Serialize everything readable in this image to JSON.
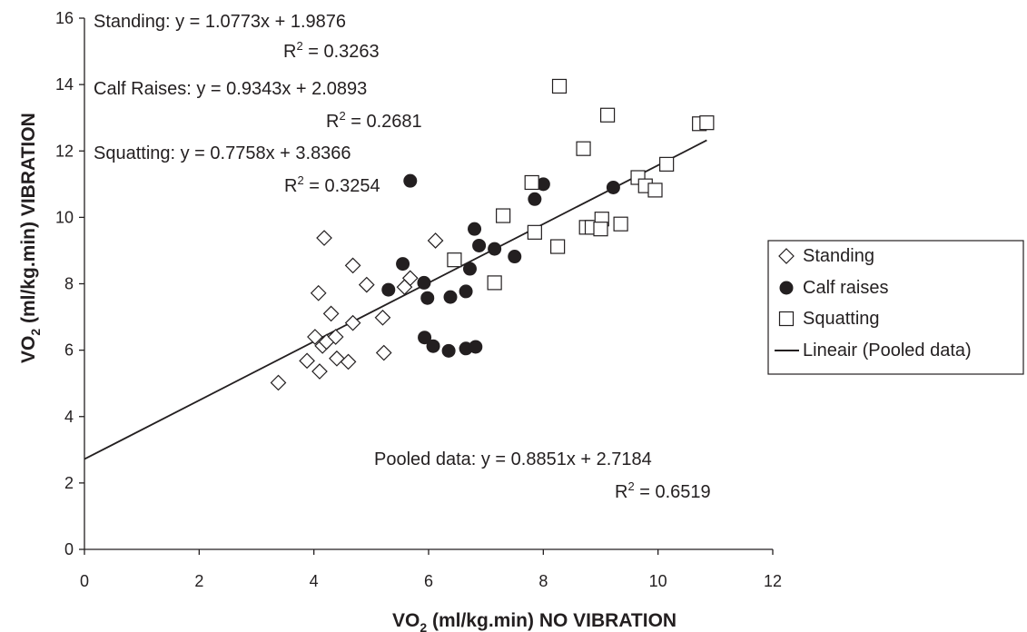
{
  "chart_data": {
    "type": "scatter",
    "xlabel": {
      "main": "VO",
      "sub": "2",
      "rest": " (ml/kg.min) NO VIBRATION"
    },
    "ylabel": {
      "main": "VO",
      "sub": "2",
      "rest": " (ml/kg.min) VIBRATION"
    },
    "xlim": [
      0,
      12
    ],
    "ylim": [
      0,
      16
    ],
    "xticks": [
      "0",
      "2",
      "4",
      "6",
      "8",
      "10",
      "12"
    ],
    "yticks": [
      "0",
      "2",
      "4",
      "6",
      "8",
      "10",
      "12",
      "14",
      "16"
    ],
    "grid": false,
    "legend_position": "right",
    "colors": {
      "ink": "#231f20",
      "background": "#ffffff"
    },
    "annotations": {
      "standing_eq": "Standing: y = 1.0773x + 1.9876",
      "standing_r2": {
        "label": "R",
        "sup": "2",
        "value": " = 0.3263"
      },
      "calf_eq": "Calf Raises: y = 0.9343x + 2.0893",
      "calf_r2": {
        "label": "R",
        "sup": "2",
        "value": "  = 0.2681"
      },
      "squat_eq": "Squatting: y = 0.7758x + 3.8366",
      "squat_r2": {
        "label": "R",
        "sup": "2",
        "value": " = 0.3254"
      },
      "pooled_eq": "Pooled data: y = 0.8851x + 2.7184",
      "pooled_r2": {
        "label": "R",
        "sup": "2",
        "value": " = 0.6519"
      }
    },
    "series": [
      {
        "name": "Standing",
        "marker": "diamond",
        "points": [
          [
            3.38,
            5.02
          ],
          [
            3.88,
            5.68
          ],
          [
            4.02,
            6.4
          ],
          [
            4.1,
            5.36
          ],
          [
            4.08,
            7.72
          ],
          [
            4.15,
            6.13
          ],
          [
            4.18,
            9.38
          ],
          [
            4.22,
            6.25
          ],
          [
            4.3,
            7.1
          ],
          [
            4.38,
            6.4
          ],
          [
            4.4,
            5.75
          ],
          [
            4.6,
            5.65
          ],
          [
            4.68,
            6.82
          ],
          [
            4.68,
            8.55
          ],
          [
            4.92,
            7.97
          ],
          [
            5.2,
            6.98
          ],
          [
            5.22,
            5.92
          ],
          [
            5.58,
            7.9
          ],
          [
            5.68,
            8.17
          ],
          [
            6.12,
            9.3
          ]
        ]
      },
      {
        "name": "Calf raises",
        "marker": "circle",
        "points": [
          [
            5.3,
            7.82
          ],
          [
            5.55,
            8.6
          ],
          [
            5.68,
            11.1
          ],
          [
            5.92,
            8.03
          ],
          [
            5.93,
            6.38
          ],
          [
            5.98,
            7.57
          ],
          [
            6.08,
            6.12
          ],
          [
            6.35,
            5.98
          ],
          [
            6.38,
            7.6
          ],
          [
            6.65,
            6.05
          ],
          [
            6.65,
            7.77
          ],
          [
            6.72,
            8.45
          ],
          [
            6.8,
            9.65
          ],
          [
            6.82,
            6.1
          ],
          [
            6.88,
            9.15
          ],
          [
            7.15,
            9.05
          ],
          [
            7.5,
            8.82
          ],
          [
            7.85,
            10.55
          ],
          [
            8.0,
            11.0
          ],
          [
            9.22,
            10.9
          ]
        ]
      },
      {
        "name": "Squatting",
        "marker": "square",
        "points": [
          [
            6.45,
            8.72
          ],
          [
            7.15,
            8.03
          ],
          [
            7.3,
            10.05
          ],
          [
            7.8,
            11.05
          ],
          [
            7.85,
            9.55
          ],
          [
            8.25,
            9.12
          ],
          [
            8.28,
            13.95
          ],
          [
            8.7,
            12.07
          ],
          [
            8.75,
            9.7
          ],
          [
            8.85,
            9.7
          ],
          [
            9.02,
            9.95
          ],
          [
            9.0,
            9.65
          ],
          [
            9.12,
            13.08
          ],
          [
            9.35,
            9.8
          ],
          [
            9.65,
            11.2
          ],
          [
            9.78,
            10.95
          ],
          [
            9.95,
            10.82
          ],
          [
            10.15,
            11.6
          ],
          [
            10.72,
            12.82
          ],
          [
            10.85,
            12.85
          ]
        ]
      }
    ],
    "trendline": {
      "name": "Lineair (Pooled data)",
      "slope": 0.8851,
      "intercept": 2.7184,
      "x_range": [
        0,
        10.85
      ]
    }
  }
}
